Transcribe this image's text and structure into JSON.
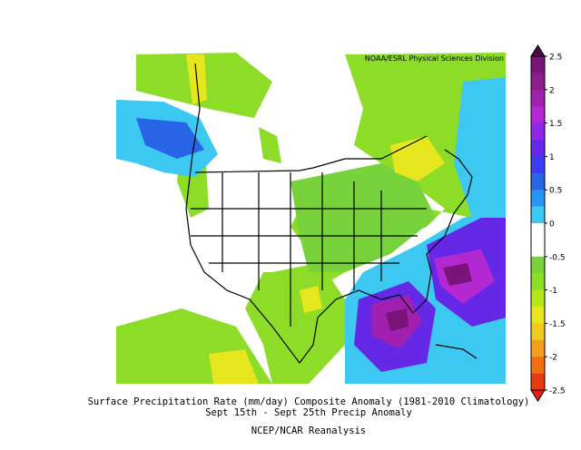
{
  "credit": "NOAA/ESRL Physical Sciences Division",
  "colorbar": {
    "ticks": [
      2.5,
      2,
      1.5,
      1,
      0.5,
      0,
      -0.5,
      -1,
      -1.5,
      -2,
      -2.5
    ],
    "colors": [
      "#7a1478",
      "#8c1e8c",
      "#a020b0",
      "#b428d2",
      "#8c28e6",
      "#6428e6",
      "#3c3cf0",
      "#2864e6",
      "#2896f0",
      "#3cc8f0",
      "#ffffff",
      "#ffffff",
      "#78d23c",
      "#8cdc28",
      "#b4e61e",
      "#e6e61e",
      "#f0c81e",
      "#f0a01e",
      "#f06e14",
      "#e63c14"
    ],
    "top_color": "#4b0a4b",
    "bottom_color": "#e61e0a"
  },
  "caption": {
    "line1": "Surface Precipitation Rate (mm/day) Composite Anomaly (1981-2010 Climatology)",
    "line2": "Sept 15th - Sept 25th Precip Anomaly",
    "line3": "NCEP/NCAR Reanalysis"
  }
}
